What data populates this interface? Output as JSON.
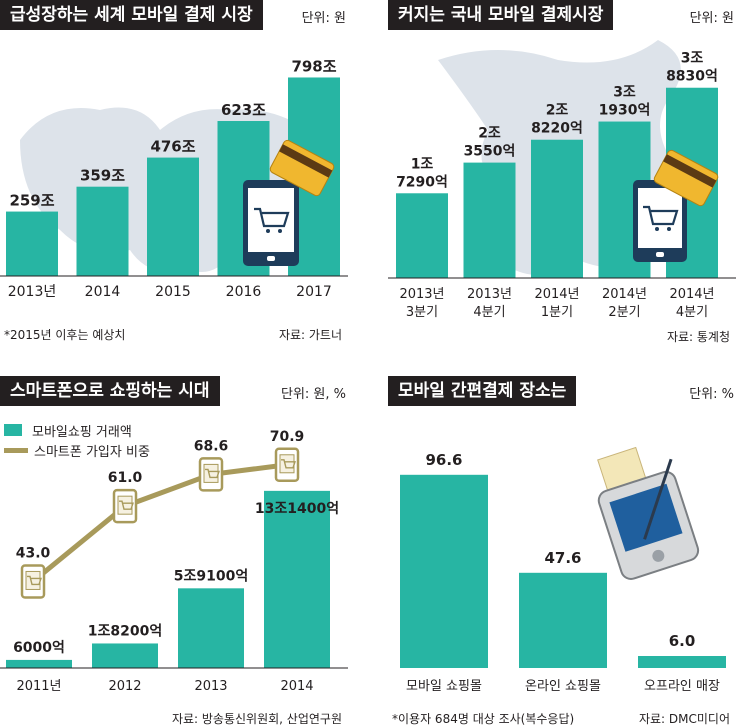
{
  "colors": {
    "teal": "#27b5a3",
    "olive": "#a89a5b",
    "dark": "#231f20",
    "map": "#dde3ea"
  },
  "panels": [
    {
      "title": "급성장하는 세계 모바일 결제 시장",
      "unit": "단위: 원",
      "note_left": "*2015년 이후는 예상치",
      "note_right": "자료: 가트너"
    },
    {
      "title": "커지는 국내 모바일 결제시장",
      "unit": "단위: 원",
      "note_left": "",
      "note_right": "자료: 통계청"
    },
    {
      "title": "스마트폰으로 쇼핑하는 시대",
      "unit": "단위: 원, %",
      "legend": [
        "모바일쇼핑 거래액",
        "스마트폰 가입자 비중"
      ],
      "note_left": "",
      "note_right": "자료: 방송통신위원회, 산업연구원"
    },
    {
      "title": "모바일 간편결제 장소는",
      "unit": "단위: %",
      "note_left": "*이용자 684명 대상 조사(복수응답)",
      "note_right": "자료: DMC미디어"
    }
  ],
  "chart_data": [
    {
      "type": "bar",
      "categories": [
        "2013년",
        "2014",
        "2015",
        "2016",
        "2017"
      ],
      "values": [
        259,
        359,
        476,
        623,
        798
      ],
      "labels": [
        "259조",
        "359조",
        "476조",
        "623조",
        "798조"
      ],
      "ylim": [
        0,
        820
      ]
    },
    {
      "type": "bar",
      "categories": [
        [
          "2013년",
          "3분기"
        ],
        [
          "2013년",
          "4분기"
        ],
        [
          "2014년",
          "1분기"
        ],
        [
          "2014년",
          "2분기"
        ],
        [
          "2014년",
          "4분기"
        ]
      ],
      "values": [
        17290,
        23550,
        28220,
        31930,
        38830
      ],
      "labels": [
        [
          "1조",
          "7290억"
        ],
        [
          "2조",
          "3550억"
        ],
        [
          "2조",
          "8220억"
        ],
        [
          "3조",
          "1930억"
        ],
        [
          "3조",
          "8830억"
        ]
      ],
      "ylim": [
        0,
        40000
      ]
    },
    {
      "type": "bar",
      "categories": [
        "2011년",
        "2012",
        "2013",
        "2014"
      ],
      "series": [
        {
          "name": "모바일쇼핑 거래액",
          "values": [
            6000,
            18200,
            59100,
            131400
          ],
          "labels": [
            "6000억",
            "1조8200억",
            "5조9100억",
            "13조1400억"
          ]
        },
        {
          "name": "스마트폰 가입자 비중",
          "type": "line",
          "values": [
            43.0,
            61.0,
            68.6,
            70.9
          ],
          "labels": [
            "43.0",
            "61.0",
            "68.6",
            "70.9"
          ]
        }
      ]
    },
    {
      "type": "bar",
      "categories": [
        "모바일 쇼핑몰",
        "온라인 쇼핑몰",
        "오프라인 매장"
      ],
      "values": [
        96.6,
        47.6,
        6.0
      ],
      "labels": [
        "96.6",
        "47.6",
        "6.0"
      ],
      "ylim": [
        0,
        100
      ]
    }
  ]
}
